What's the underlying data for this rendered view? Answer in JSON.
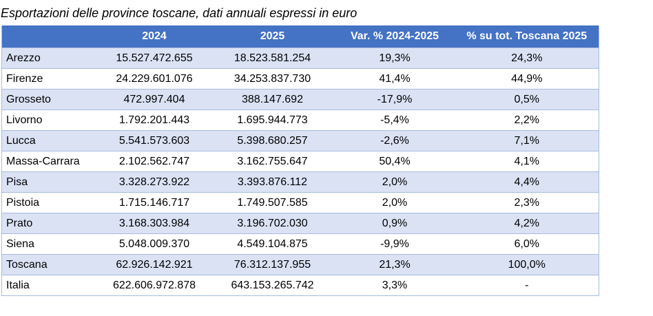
{
  "title": "Esportazioni delle province toscane, dati annuali espressi in euro",
  "colors": {
    "header_bg": "#4472c4",
    "header_text": "#ffffff",
    "band_row": "#dae2f4",
    "plain_row": "#ffffff"
  },
  "table": {
    "headers": [
      "",
      "2024",
      "2025",
      "Var. % 2024-2025",
      "% su tot. Toscana 2025"
    ],
    "rows": [
      {
        "name": "Arezzo",
        "v2024": "15.527.472.655",
        "v2025": "18.523.581.254",
        "var": "19,3%",
        "share": "24,3%"
      },
      {
        "name": "Firenze",
        "v2024": "24.229.601.076",
        "v2025": "34.253.837.730",
        "var": "41,4%",
        "share": "44,9%"
      },
      {
        "name": "Grosseto",
        "v2024": "472.997.404",
        "v2025": "388.147.692",
        "var": "-17,9%",
        "share": "0,5%"
      },
      {
        "name": "Livorno",
        "v2024": "1.792.201.443",
        "v2025": "1.695.944.773",
        "var": "-5,4%",
        "share": "2,2%"
      },
      {
        "name": "Lucca",
        "v2024": "5.541.573.603",
        "v2025": "5.398.680.257",
        "var": "-2,6%",
        "share": "7,1%"
      },
      {
        "name": "Massa-Carrara",
        "v2024": "2.102.562.747",
        "v2025": "3.162.755.647",
        "var": "50,4%",
        "share": "4,1%"
      },
      {
        "name": "Pisa",
        "v2024": "3.328.273.922",
        "v2025": "3.393.876.112",
        "var": "2,0%",
        "share": "4,4%"
      },
      {
        "name": "Pistoia",
        "v2024": "1.715.146.717",
        "v2025": "1.749.507.585",
        "var": "2,0%",
        "share": "2,3%"
      },
      {
        "name": "Prato",
        "v2024": "3.168.303.984",
        "v2025": "3.196.702.030",
        "var": "0,9%",
        "share": "4,2%"
      },
      {
        "name": "Siena",
        "v2024": "5.048.009.370",
        "v2025": "4.549.104.875",
        "var": "-9,9%",
        "share": "6,0%"
      },
      {
        "name": "Toscana",
        "v2024": "62.926.142.921",
        "v2025": "76.312.137.955",
        "var": "21,3%",
        "share": "100,0%"
      },
      {
        "name": "Italia",
        "v2024": "622.606.972.878",
        "v2025": "643.153.265.742",
        "var": "3,3%",
        "share": "-"
      }
    ]
  }
}
